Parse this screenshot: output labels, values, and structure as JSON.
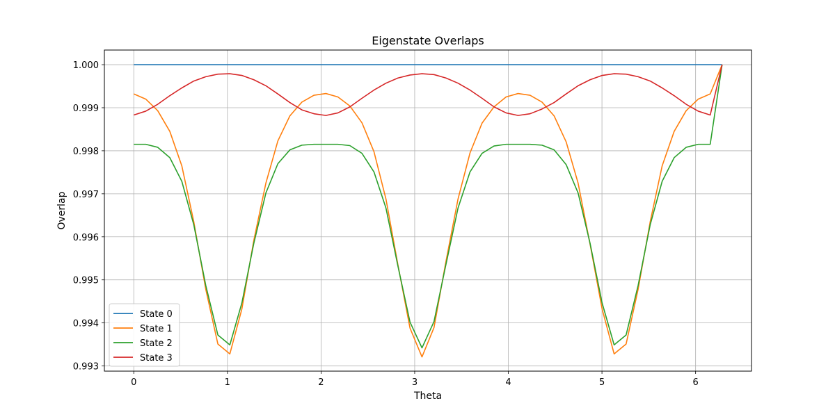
{
  "chart_data": {
    "type": "line",
    "title": "Eigenstate Overlaps",
    "xlabel": "Theta",
    "ylabel": "Overlap",
    "xlim": [
      -0.314,
      6.597
    ],
    "ylim": [
      0.99288,
      1.00034
    ],
    "xticks": [
      0,
      1,
      2,
      3,
      4,
      5,
      6
    ],
    "xtick_labels": [
      "0",
      "1",
      "2",
      "3",
      "4",
      "5",
      "6"
    ],
    "yticks": [
      0.993,
      0.994,
      0.995,
      0.996,
      0.997,
      0.998,
      0.999,
      1.0
    ],
    "ytick_labels": [
      "0.993",
      "0.994",
      "0.995",
      "0.996",
      "0.997",
      "0.998",
      "0.999",
      "1.000"
    ],
    "grid": true,
    "legend_position": "lower-left",
    "x": [
      0.0,
      0.128,
      0.256,
      0.385,
      0.513,
      0.641,
      0.769,
      0.898,
      1.026,
      1.154,
      1.282,
      1.411,
      1.539,
      1.667,
      1.795,
      1.924,
      2.052,
      2.18,
      2.308,
      2.437,
      2.565,
      2.693,
      2.821,
      2.95,
      3.078,
      3.206,
      3.334,
      3.463,
      3.591,
      3.719,
      3.847,
      3.976,
      4.104,
      4.232,
      4.36,
      4.489,
      4.617,
      4.745,
      4.873,
      5.002,
      5.13,
      5.258,
      5.386,
      5.515,
      5.643,
      5.771,
      5.899,
      6.028,
      6.156,
      6.283
    ],
    "series": [
      {
        "name": "State 0",
        "color": "#1f77b4",
        "values": [
          1.0,
          1.0,
          1.0,
          1.0,
          1.0,
          1.0,
          1.0,
          1.0,
          1.0,
          1.0,
          1.0,
          1.0,
          1.0,
          1.0,
          1.0,
          1.0,
          1.0,
          1.0,
          1.0,
          1.0,
          1.0,
          1.0,
          1.0,
          1.0,
          1.0,
          1.0,
          1.0,
          1.0,
          1.0,
          1.0,
          1.0,
          1.0,
          1.0,
          1.0,
          1.0,
          1.0,
          1.0,
          1.0,
          1.0,
          1.0,
          1.0,
          1.0,
          1.0,
          1.0,
          1.0,
          1.0,
          1.0,
          1.0,
          1.0,
          1.0
        ]
      },
      {
        "name": "State 1",
        "color": "#ff7f0e",
        "values": [
          0.99932,
          0.9992,
          0.99893,
          0.99845,
          0.99765,
          0.99635,
          0.99478,
          0.99351,
          0.99328,
          0.99432,
          0.99592,
          0.99725,
          0.99823,
          0.99881,
          0.99913,
          0.99929,
          0.99933,
          0.99925,
          0.99904,
          0.99865,
          0.99798,
          0.99688,
          0.99535,
          0.99388,
          0.99321,
          0.99389,
          0.99543,
          0.99688,
          0.99795,
          0.99864,
          0.99902,
          0.99925,
          0.99933,
          0.99929,
          0.99913,
          0.99881,
          0.99821,
          0.99725,
          0.99583,
          0.99432,
          0.99328,
          0.99351,
          0.99478,
          0.99635,
          0.99765,
          0.99845,
          0.99893,
          0.9992,
          0.99932,
          1.0
        ]
      },
      {
        "name": "State 2",
        "color": "#2ca02c",
        "values": [
          0.99815,
          0.99815,
          0.99808,
          0.99784,
          0.99729,
          0.99628,
          0.99487,
          0.99372,
          0.99349,
          0.99446,
          0.99585,
          0.99702,
          0.9977,
          0.99802,
          0.99813,
          0.99815,
          0.99815,
          0.99815,
          0.99812,
          0.99794,
          0.99751,
          0.99667,
          0.99532,
          0.99402,
          0.99342,
          0.99403,
          0.99536,
          0.99667,
          0.99751,
          0.99794,
          0.99811,
          0.99815,
          0.99815,
          0.99815,
          0.99813,
          0.99802,
          0.99768,
          0.99702,
          0.99585,
          0.99446,
          0.99349,
          0.99372,
          0.99487,
          0.99628,
          0.99729,
          0.99784,
          0.99808,
          0.99815,
          0.99815,
          1.0
        ]
      },
      {
        "name": "State 3",
        "color": "#d62728",
        "values": [
          0.99883,
          0.99892,
          0.99908,
          0.99928,
          0.99946,
          0.99962,
          0.99972,
          0.99978,
          0.99979,
          0.99975,
          0.99965,
          0.99951,
          0.99932,
          0.99912,
          0.99895,
          0.99886,
          0.99882,
          0.99888,
          0.99902,
          0.99922,
          0.99941,
          0.99957,
          0.99969,
          0.99976,
          0.99979,
          0.99977,
          0.99969,
          0.99957,
          0.99941,
          0.99922,
          0.99902,
          0.99888,
          0.99882,
          0.99886,
          0.99897,
          0.99912,
          0.99932,
          0.99951,
          0.99965,
          0.99975,
          0.99979,
          0.99978,
          0.99972,
          0.99962,
          0.99946,
          0.99928,
          0.99908,
          0.99892,
          0.99883,
          1.0
        ]
      }
    ]
  }
}
